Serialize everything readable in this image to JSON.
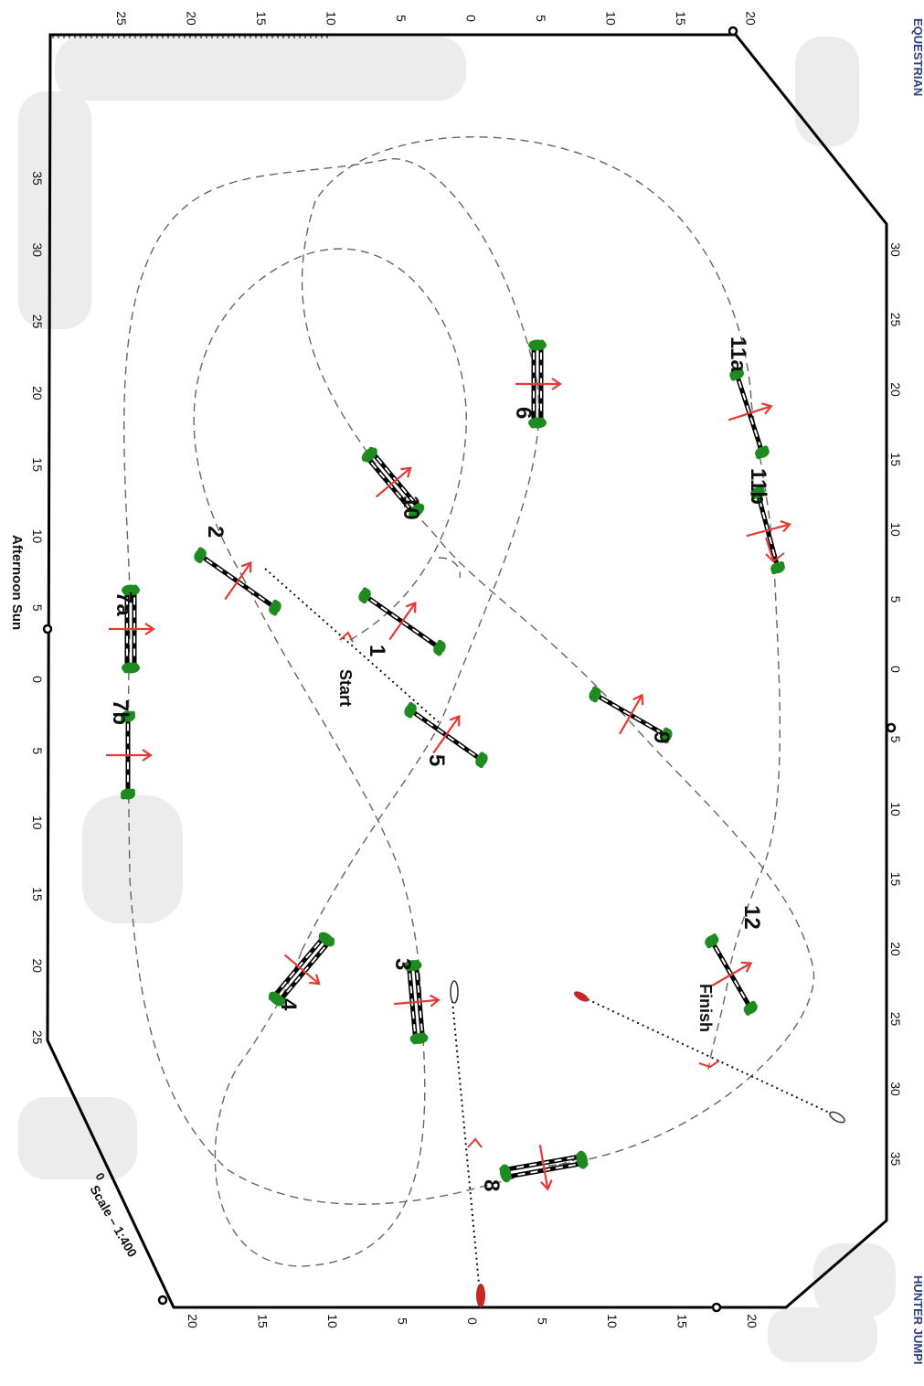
{
  "brand": {
    "top": "EQUESTRIAN",
    "bottom": "HUNTER JUMPI"
  },
  "labels": {
    "start": "Start",
    "finish": "Finish",
    "sun": "Afternoon Sun",
    "scale_zero": "0",
    "scale": "Scale – 1:400"
  },
  "ruler_top": [
    "25",
    "20",
    "15",
    "10",
    "5",
    "0",
    "5",
    "10",
    "15",
    "20"
  ],
  "ruler_bottom": [
    "20",
    "15",
    "10",
    "5",
    "0",
    "5",
    "10",
    "15",
    "20"
  ],
  "ruler_left": [
    "35",
    "30",
    "25",
    "20",
    "15",
    "10",
    "5",
    "0",
    "5",
    "10",
    "15",
    "20",
    "25"
  ],
  "ruler_right": [
    "30",
    "25",
    "20",
    "15",
    "10",
    "5",
    "0",
    "5",
    "10",
    "15",
    "20",
    "25",
    "30",
    "35"
  ],
  "jumps": [
    {
      "id": "1",
      "label": "1"
    },
    {
      "id": "2",
      "label": "2"
    },
    {
      "id": "3",
      "label": "3"
    },
    {
      "id": "4",
      "label": "4"
    },
    {
      "id": "5",
      "label": "5"
    },
    {
      "id": "6",
      "label": "6"
    },
    {
      "id": "7a",
      "label": "7a"
    },
    {
      "id": "7b",
      "label": "7b"
    },
    {
      "id": "8",
      "label": "8"
    },
    {
      "id": "9",
      "label": "9"
    },
    {
      "id": "10",
      "label": "10"
    },
    {
      "id": "11a",
      "label": "11a"
    },
    {
      "id": "11b",
      "label": "11b"
    },
    {
      "id": "12",
      "label": "12"
    }
  ],
  "colors": {
    "path": "#666666",
    "arrow": "#e53935",
    "bush": "#1f8a1f",
    "border": "#000000",
    "flag": "#c62828"
  }
}
